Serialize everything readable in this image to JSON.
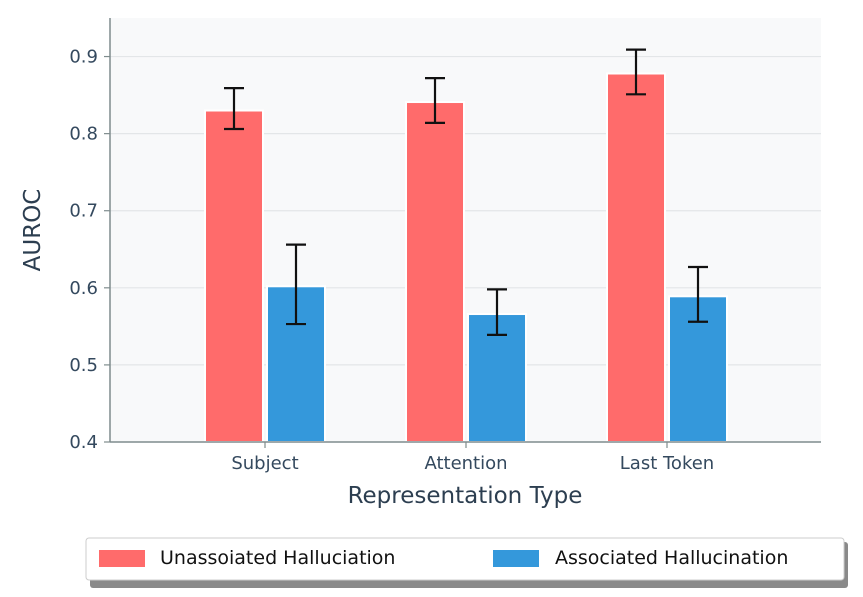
{
  "chart_data": {
    "type": "bar",
    "title": "",
    "xlabel": "Representation Type",
    "ylabel": "AUROC",
    "categories": [
      "Subject",
      "Attention",
      "Last Token"
    ],
    "ylim": [
      0.4,
      0.95
    ],
    "yticks": [
      "0.4",
      "0.5",
      "0.6",
      "0.7",
      "0.8",
      "0.9"
    ],
    "grid": "y",
    "legend_position": "bottom",
    "series": [
      {
        "name": "Unassoiated Halluciation",
        "color": "#ff6b6b",
        "values": [
          0.83,
          0.841,
          0.878
        ],
        "error_low": [
          0.806,
          0.814,
          0.851
        ],
        "error_high": [
          0.859,
          0.872,
          0.909
        ]
      },
      {
        "name": "Associated Hallucination",
        "color": "#3498db",
        "values": [
          0.602,
          0.566,
          0.589
        ],
        "error_low": [
          0.553,
          0.539,
          0.556
        ],
        "error_high": [
          0.656,
          0.598,
          0.627
        ]
      }
    ]
  }
}
